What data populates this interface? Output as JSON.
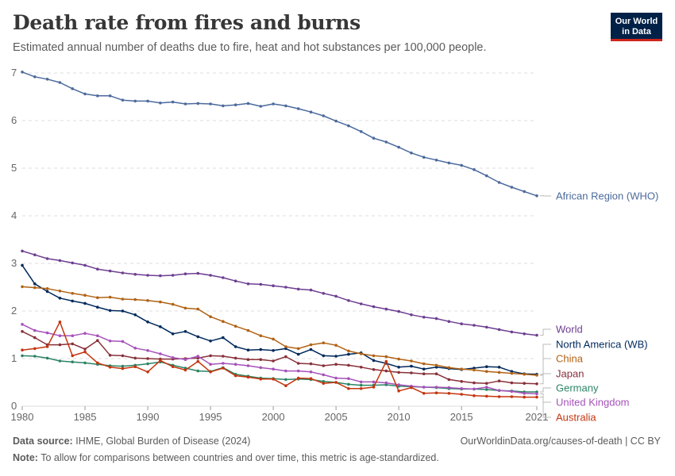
{
  "header": {
    "title": "Death rate from fires and burns",
    "subtitle": "Estimated annual number of deaths due to fire, heat and hot substances per 100,000 people.",
    "logo_line1": "Our World",
    "logo_line2": "in Data"
  },
  "footer": {
    "source_label": "Data source:",
    "source_text": "IHME, Global Burden of Disease (2024)",
    "url": "OurWorldinData.org/causes-of-death | CC BY",
    "note_label": "Note:",
    "note_text": "To allow for comparisons between countries and over time, this metric is age-standardized."
  },
  "chart_data": {
    "type": "line",
    "x": [
      1980,
      1981,
      1982,
      1983,
      1984,
      1985,
      1986,
      1987,
      1988,
      1989,
      1990,
      1991,
      1992,
      1993,
      1994,
      1995,
      1996,
      1997,
      1998,
      1999,
      2000,
      2001,
      2002,
      2003,
      2004,
      2005,
      2006,
      2007,
      2008,
      2009,
      2010,
      2011,
      2012,
      2013,
      2014,
      2015,
      2016,
      2017,
      2018,
      2019,
      2020,
      2021
    ],
    "xticks": [
      "1980",
      "1985",
      "1990",
      "1995",
      "2000",
      "2005",
      "2010",
      "2015",
      "2021"
    ],
    "xtick_values": [
      1980,
      1985,
      1990,
      1995,
      2000,
      2005,
      2010,
      2015,
      2021
    ],
    "yticks": [
      "0",
      "1",
      "2",
      "3",
      "4",
      "5",
      "6",
      "7"
    ],
    "ytick_values": [
      0,
      1,
      2,
      3,
      4,
      5,
      6,
      7
    ],
    "ylim": [
      0,
      7
    ],
    "grid": "horizontal dashed",
    "legend": "right, labels at line ends",
    "series": [
      {
        "name": "African Region (WHO)",
        "color": "#4c6a9c",
        "values": [
          7.02,
          6.92,
          6.87,
          6.8,
          6.67,
          6.56,
          6.52,
          6.52,
          6.43,
          6.41,
          6.41,
          6.37,
          6.39,
          6.35,
          6.36,
          6.35,
          6.31,
          6.33,
          6.36,
          6.3,
          6.35,
          6.31,
          6.25,
          6.18,
          6.1,
          5.99,
          5.89,
          5.77,
          5.63,
          5.55,
          5.44,
          5.32,
          5.23,
          5.17,
          5.11,
          5.06,
          4.97,
          4.84,
          4.7,
          4.6,
          4.51,
          4.42
        ]
      },
      {
        "name": "World",
        "color": "#6d3e91",
        "values": [
          3.26,
          3.18,
          3.1,
          3.06,
          3.01,
          2.96,
          2.88,
          2.84,
          2.8,
          2.77,
          2.75,
          2.74,
          2.75,
          2.78,
          2.79,
          2.75,
          2.7,
          2.63,
          2.57,
          2.56,
          2.53,
          2.5,
          2.46,
          2.44,
          2.37,
          2.31,
          2.22,
          2.15,
          2.09,
          2.04,
          1.99,
          1.92,
          1.87,
          1.84,
          1.78,
          1.73,
          1.7,
          1.66,
          1.61,
          1.56,
          1.52,
          1.49
        ]
      },
      {
        "name": "North America (WB)",
        "color": "#00295b",
        "values": [
          2.96,
          2.57,
          2.41,
          2.27,
          2.21,
          2.16,
          2.08,
          2.01,
          2.0,
          1.92,
          1.77,
          1.67,
          1.52,
          1.57,
          1.46,
          1.37,
          1.44,
          1.25,
          1.18,
          1.19,
          1.17,
          1.21,
          1.09,
          1.19,
          1.06,
          1.05,
          1.09,
          1.12,
          0.96,
          0.9,
          0.82,
          0.84,
          0.78,
          0.82,
          0.79,
          0.77,
          0.8,
          0.83,
          0.82,
          0.73,
          0.68,
          0.67
        ]
      },
      {
        "name": "China",
        "color": "#b16214",
        "values": [
          2.51,
          2.49,
          2.47,
          2.42,
          2.37,
          2.33,
          2.28,
          2.29,
          2.25,
          2.24,
          2.22,
          2.19,
          2.14,
          2.06,
          2.04,
          1.88,
          1.78,
          1.68,
          1.59,
          1.48,
          1.41,
          1.25,
          1.21,
          1.29,
          1.33,
          1.28,
          1.16,
          1.1,
          1.06,
          1.04,
          0.99,
          0.95,
          0.89,
          0.86,
          0.81,
          0.78,
          0.76,
          0.73,
          0.71,
          0.69,
          0.67,
          0.65
        ]
      },
      {
        "name": "Japan",
        "color": "#883039",
        "values": [
          1.57,
          1.44,
          1.29,
          1.29,
          1.31,
          1.2,
          1.38,
          1.07,
          1.06,
          1.01,
          1.0,
          0.99,
          0.99,
          1.0,
          1.01,
          1.06,
          1.05,
          1.01,
          0.98,
          0.98,
          0.95,
          1.04,
          0.9,
          0.89,
          0.85,
          0.88,
          0.86,
          0.82,
          0.77,
          0.74,
          0.71,
          0.7,
          0.68,
          0.68,
          0.56,
          0.52,
          0.49,
          0.48,
          0.53,
          0.49,
          0.48,
          0.47
        ]
      },
      {
        "name": "Germany",
        "color": "#2c8465",
        "values": [
          1.06,
          1.05,
          1.01,
          0.95,
          0.93,
          0.91,
          0.88,
          0.85,
          0.84,
          0.86,
          0.89,
          0.93,
          0.86,
          0.8,
          0.74,
          0.73,
          0.81,
          0.67,
          0.63,
          0.59,
          0.58,
          0.56,
          0.57,
          0.56,
          0.52,
          0.5,
          0.46,
          0.44,
          0.44,
          0.45,
          0.42,
          0.41,
          0.4,
          0.39,
          0.37,
          0.36,
          0.36,
          0.35,
          0.33,
          0.32,
          0.3,
          0.3
        ]
      },
      {
        "name": "United Kingdom",
        "color": "#a652ba",
        "values": [
          1.72,
          1.59,
          1.54,
          1.48,
          1.48,
          1.53,
          1.48,
          1.37,
          1.36,
          1.22,
          1.17,
          1.1,
          1.02,
          0.98,
          1.05,
          0.88,
          0.9,
          0.88,
          0.85,
          0.81,
          0.78,
          0.74,
          0.74,
          0.72,
          0.66,
          0.59,
          0.58,
          0.51,
          0.51,
          0.49,
          0.45,
          0.42,
          0.4,
          0.4,
          0.39,
          0.37,
          0.36,
          0.4,
          0.33,
          0.31,
          0.27,
          0.26
        ]
      },
      {
        "name": "Australia",
        "color": "#c4350f",
        "values": [
          1.18,
          1.21,
          1.25,
          1.77,
          1.06,
          1.14,
          0.91,
          0.82,
          0.79,
          0.83,
          0.72,
          0.96,
          0.83,
          0.76,
          0.94,
          0.72,
          0.8,
          0.64,
          0.61,
          0.57,
          0.57,
          0.43,
          0.59,
          0.58,
          0.48,
          0.5,
          0.37,
          0.37,
          0.4,
          0.94,
          0.32,
          0.39,
          0.27,
          0.28,
          0.27,
          0.25,
          0.22,
          0.21,
          0.2,
          0.2,
          0.19,
          0.19
        ]
      }
    ]
  }
}
